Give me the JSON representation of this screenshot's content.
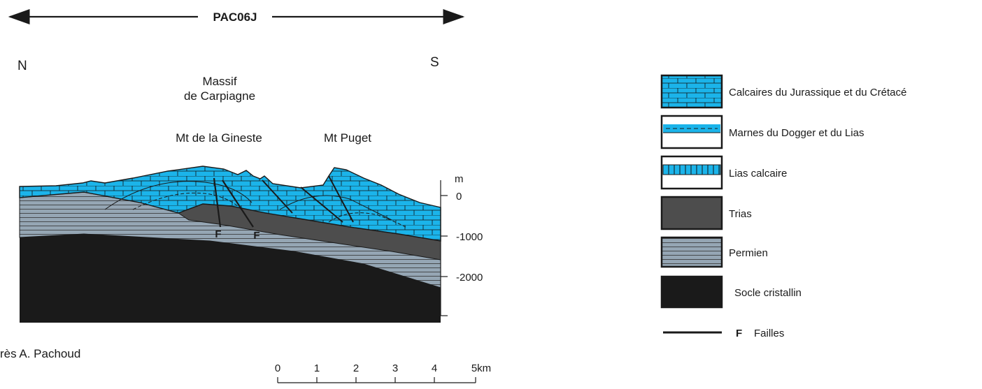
{
  "header": {
    "code": "PAC06J"
  },
  "orientation": {
    "north": "N",
    "south": "S"
  },
  "section": {
    "massif_line1": "Massif",
    "massif_line2": "de Carpiagne",
    "peak_left": "Mt de la Gineste",
    "peak_right": "Mt Puget",
    "fault_label": "F"
  },
  "depth_axis": {
    "unit": "m",
    "ticks": [
      "0",
      "-1000",
      "-2000"
    ]
  },
  "scale_bar": {
    "ticks": [
      "0",
      "1",
      "2",
      "3",
      "4",
      "5km"
    ]
  },
  "credit": "rès A. Pachoud",
  "legend": {
    "items": [
      {
        "label": "Calcaires du Jurassique et du Crétacé"
      },
      {
        "label": "Marnes du Dogger et du Lias"
      },
      {
        "label": "Lias calcaire"
      },
      {
        "label": "Trias"
      },
      {
        "label": "Permien"
      },
      {
        "label": "Socle cristallin"
      }
    ],
    "fault": {
      "symbol": "F",
      "label": "Failles"
    }
  },
  "colors": {
    "limestone": "#1bb4ea",
    "trias": "#4d4d4d",
    "permian": "#95a6b4",
    "basement": "#1a1a1a",
    "line": "#1a1a1a"
  }
}
